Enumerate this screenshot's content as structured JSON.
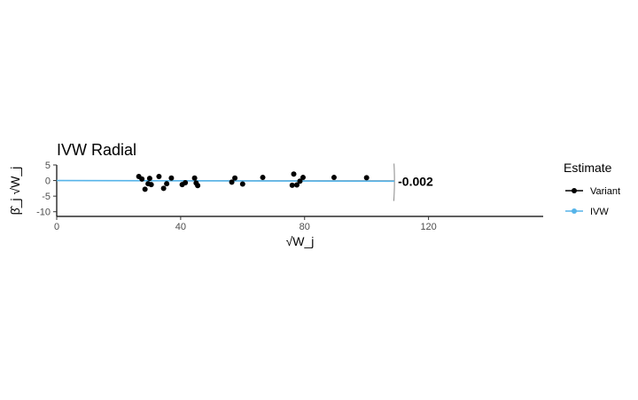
{
  "chart_data": {
    "type": "scatter",
    "title": "IVW Radial",
    "xlabel": "√W_j",
    "ylabel": "β̂_j √W_j",
    "xlim": [
      0,
      157
    ],
    "ylim": [
      -11.5,
      5
    ],
    "x_ticks": [
      0,
      40,
      80,
      120
    ],
    "y_ticks": [
      5,
      0,
      -5,
      -10
    ],
    "x_tick_labels": [
      "0",
      "40",
      "80",
      "120"
    ],
    "y_tick_labels": [
      "5",
      "0",
      "-5",
      "-10"
    ],
    "grid": false,
    "legend": {
      "title": "Estimate",
      "position": "right",
      "entries": [
        {
          "label": "Variant",
          "color": "#000000"
        },
        {
          "label": "IVW",
          "color": "#56b4e9"
        }
      ]
    },
    "series": [
      {
        "name": "Variant",
        "points": [
          {
            "x": 26.5,
            "y": 1.3
          },
          {
            "x": 27.5,
            "y": 0.5
          },
          {
            "x": 28.5,
            "y": -2.8
          },
          {
            "x": 29.5,
            "y": -1.0
          },
          {
            "x": 30.0,
            "y": 0.7
          },
          {
            "x": 30.5,
            "y": -1.3
          },
          {
            "x": 33.0,
            "y": 1.3
          },
          {
            "x": 34.5,
            "y": -2.5
          },
          {
            "x": 35.5,
            "y": -1.0
          },
          {
            "x": 37.0,
            "y": 0.8
          },
          {
            "x": 40.5,
            "y": -1.3
          },
          {
            "x": 41.5,
            "y": -0.7
          },
          {
            "x": 44.5,
            "y": 0.8
          },
          {
            "x": 45.0,
            "y": -0.8
          },
          {
            "x": 45.5,
            "y": -1.6
          },
          {
            "x": 56.5,
            "y": -0.5
          },
          {
            "x": 57.5,
            "y": 0.8
          },
          {
            "x": 60.0,
            "y": -1.1
          },
          {
            "x": 66.5,
            "y": 1.0
          },
          {
            "x": 76.0,
            "y": -1.5
          },
          {
            "x": 76.5,
            "y": 2.1
          },
          {
            "x": 77.5,
            "y": -1.4
          },
          {
            "x": 78.5,
            "y": -0.2
          },
          {
            "x": 79.5,
            "y": 1.0
          },
          {
            "x": 89.5,
            "y": 1.0
          },
          {
            "x": 100.0,
            "y": 0.9
          }
        ]
      },
      {
        "name": "IVW",
        "slope": -0.002,
        "x": [
          0,
          109
        ]
      }
    ],
    "arc_x": 109,
    "annotations": [
      {
        "text": "-0.002",
        "x": 109,
        "y": -0.2
      }
    ]
  }
}
